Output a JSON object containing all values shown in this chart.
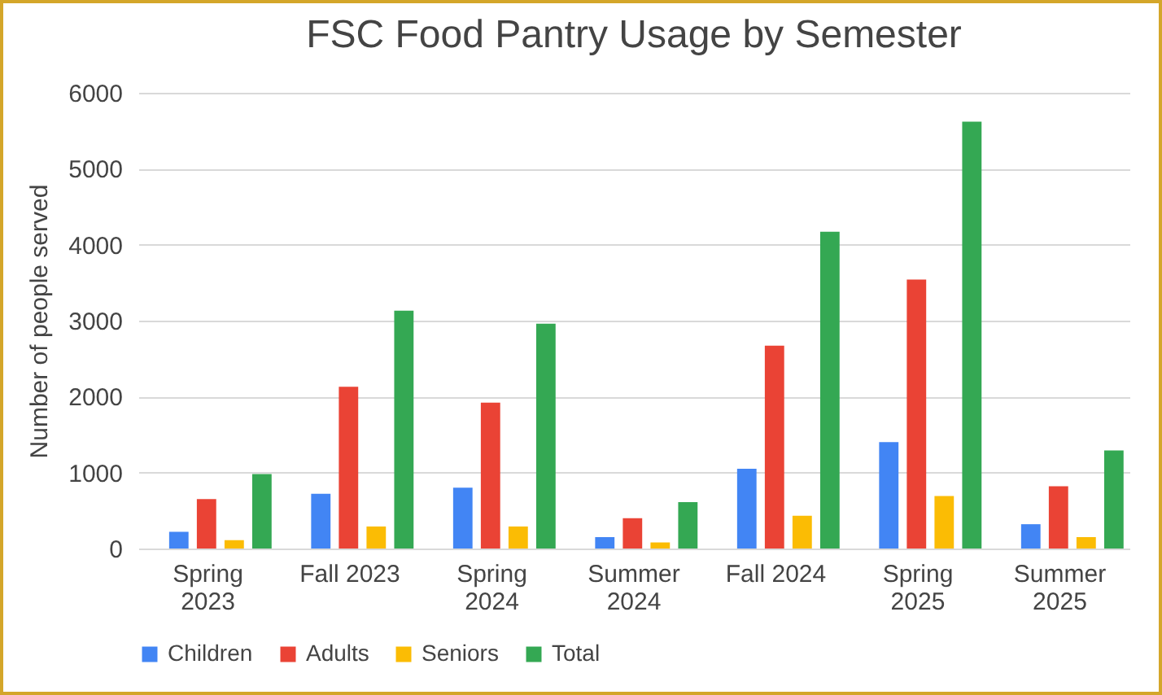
{
  "chart_data": {
    "type": "bar",
    "title": "FSC Food Pantry Usage by Semester",
    "ylabel": "Number of people served",
    "categories": [
      "Spring 2023",
      "Fall 2023",
      "Spring 2024",
      "Summer 2024",
      "Fall 2024",
      "Spring 2025",
      "Summer 2025"
    ],
    "series": [
      {
        "name": "Children",
        "color": "#4285f4",
        "values": [
          220,
          720,
          800,
          150,
          1050,
          1400,
          320
        ]
      },
      {
        "name": "Adults",
        "color": "#ea4335",
        "values": [
          650,
          2130,
          1920,
          400,
          2670,
          3540,
          820
        ]
      },
      {
        "name": "Seniors",
        "color": "#fbbc04",
        "values": [
          110,
          290,
          290,
          80,
          430,
          690,
          150
        ]
      },
      {
        "name": "Total",
        "color": "#34a853",
        "values": [
          980,
          3130,
          2960,
          610,
          4170,
          5620,
          1290
        ]
      }
    ],
    "ylim": [
      0,
      6000
    ],
    "yticks": [
      0,
      1000,
      2000,
      3000,
      4000,
      5000,
      6000
    ],
    "grid": "y",
    "legend": "bottom"
  }
}
